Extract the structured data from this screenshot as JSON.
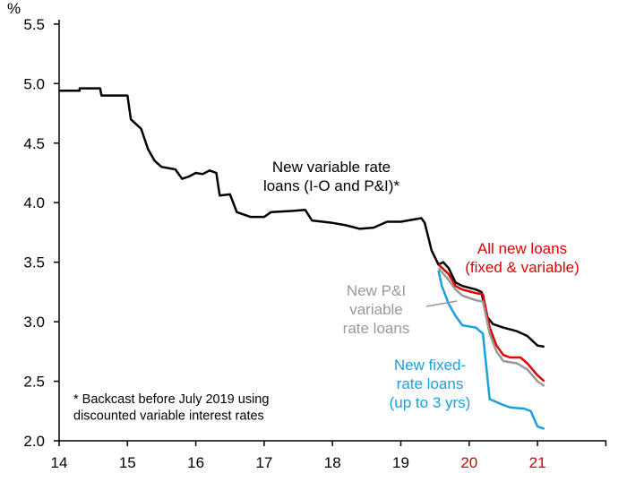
{
  "chart_data": {
    "type": "line",
    "ylabel": "%",
    "ylim": [
      2.0,
      5.5
    ],
    "xlim": [
      14,
      22
    ],
    "yticks": [
      "2.0",
      "2.5",
      "3.0",
      "3.5",
      "4.0",
      "4.5",
      "5.0",
      "5.5"
    ],
    "xticks": [
      "14",
      "15",
      "16",
      "17",
      "18",
      "19",
      "20",
      "21"
    ],
    "xtick_colors": [
      "#000",
      "#000",
      "#000",
      "#000",
      "#000",
      "#000",
      "#d00000",
      "#d00000"
    ],
    "grid": false,
    "series": [
      {
        "name": "New variable rate loans (I-O and P&I)*",
        "color": "#000000",
        "x": [
          14,
          14.3,
          14.3,
          14.6,
          14.62,
          15.0,
          15.05,
          15.2,
          15.3,
          15.4,
          15.5,
          15.7,
          15.8,
          15.9,
          16.0,
          16.1,
          16.2,
          16.3,
          16.35,
          16.5,
          16.6,
          16.8,
          17.0,
          17.1,
          17.4,
          17.6,
          17.7,
          18.0,
          18.2,
          18.4,
          18.6,
          18.8,
          19.0,
          19.3,
          19.35,
          19.45,
          19.55,
          19.62,
          19.7,
          19.8,
          19.9,
          20.1,
          20.18,
          20.25,
          20.35,
          20.5,
          20.7,
          20.85,
          21.0,
          21.1
        ],
        "y": [
          4.94,
          4.94,
          4.96,
          4.96,
          4.9,
          4.9,
          4.7,
          4.62,
          4.45,
          4.35,
          4.3,
          4.28,
          4.2,
          4.22,
          4.25,
          4.24,
          4.27,
          4.25,
          4.06,
          4.07,
          3.92,
          3.88,
          3.88,
          3.92,
          3.93,
          3.94,
          3.85,
          3.83,
          3.81,
          3.78,
          3.79,
          3.84,
          3.84,
          3.87,
          3.83,
          3.6,
          3.48,
          3.5,
          3.45,
          3.33,
          3.3,
          3.27,
          3.25,
          3.05,
          2.98,
          2.95,
          2.92,
          2.88,
          2.8,
          2.79
        ]
      },
      {
        "name": "All new loans (fixed & variable)",
        "color": "#e00000",
        "x": [
          19.55,
          19.7,
          19.8,
          19.9,
          20.1,
          20.2,
          20.3,
          20.4,
          20.5,
          20.6,
          20.75,
          20.85,
          21.0,
          21.1
        ],
        "y": [
          3.48,
          3.4,
          3.3,
          3.27,
          3.24,
          3.23,
          2.95,
          2.8,
          2.72,
          2.7,
          2.7,
          2.65,
          2.55,
          2.5
        ]
      },
      {
        "name": "New P&I variable rate loans",
        "color": "#999999",
        "x": [
          19.55,
          19.7,
          19.8,
          19.9,
          20.1,
          20.2,
          20.3,
          20.4,
          20.5,
          20.7,
          20.85,
          21.0,
          21.1
        ],
        "y": [
          3.45,
          3.35,
          3.27,
          3.22,
          3.18,
          3.17,
          2.9,
          2.75,
          2.67,
          2.65,
          2.6,
          2.5,
          2.46
        ]
      },
      {
        "name": "New fixed-rate loans (up to 3 yrs)",
        "color": "#1aa0dc",
        "x": [
          19.55,
          19.6,
          19.7,
          19.8,
          19.9,
          20.1,
          20.2,
          20.3,
          20.5,
          20.6,
          20.8,
          20.9,
          21.0,
          21.1
        ],
        "y": [
          3.43,
          3.3,
          3.15,
          3.05,
          2.97,
          2.95,
          2.9,
          2.35,
          2.3,
          2.28,
          2.27,
          2.25,
          2.12,
          2.1
        ]
      }
    ],
    "annotations": [
      {
        "lines": [
          "New variable rate",
          "loans (I-O and P&I)*"
        ],
        "color": "#000000"
      },
      {
        "lines": [
          "All new loans",
          "(fixed & variable)"
        ],
        "color": "#e00000"
      },
      {
        "lines": [
          "New P&I",
          "variable",
          "rate loans"
        ],
        "color": "#999999"
      },
      {
        "lines": [
          "New fixed-",
          "rate loans",
          "(up to 3 yrs)"
        ],
        "color": "#1aa0dc"
      },
      {
        "lines": [
          "* Backcast before July 2019 using",
          "discounted variable interest rates"
        ],
        "color": "#000000"
      }
    ]
  }
}
